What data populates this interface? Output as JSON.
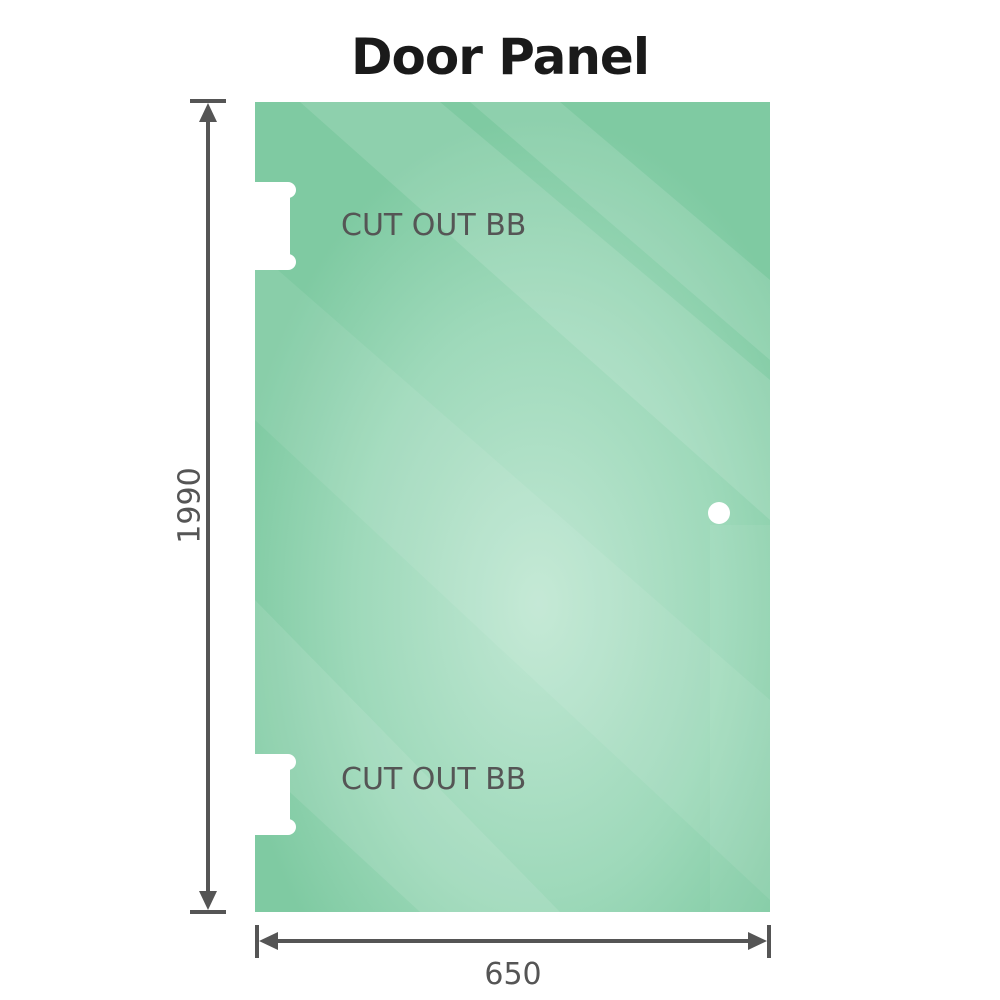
{
  "title": "Door Panel",
  "labels": {
    "cutout_top": "CUT OUT BB",
    "cutout_bottom": "CUT OUT BB"
  },
  "dimensions": {
    "height": "1990",
    "width": "650"
  },
  "colors": {
    "glass": "#86cfa8",
    "glass_light": "#bde6cf",
    "dimension_line": "#555555"
  }
}
